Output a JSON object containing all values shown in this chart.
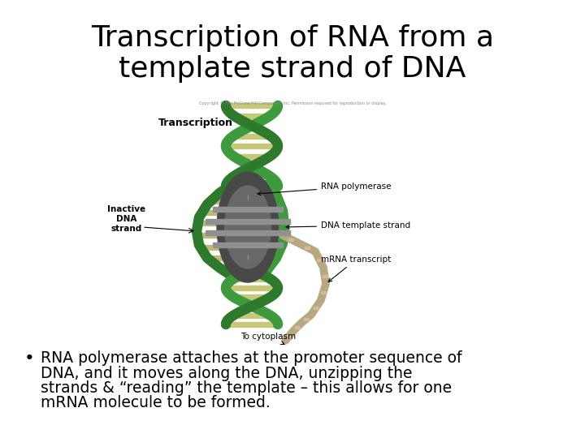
{
  "title_line1": "Transcription of RNA from a",
  "title_line2": "template strand of DNA",
  "title_fontsize": 26,
  "title_color": "#000000",
  "background_color": "#ffffff",
  "bullet_text": "RNA polymerase attaches at the promoter sequence of DNA, and it moves along the DNA, unzipping the strands & “reading” the template – this allows for one mRNA molecule to be formed.",
  "bullet_fontsize": 13.5,
  "figsize": [
    7.2,
    5.4
  ],
  "dpi": 100,
  "c_green_dark": "#2d7a2d",
  "c_green_mid": "#3d9a3d",
  "c_green_light": "#66bb66",
  "c_rung": "#c8c87a",
  "c_gray_dark": "#484848",
  "c_gray_mid": "#686868",
  "c_gray_light": "#909090",
  "c_beige": "#b8a880",
  "c_label": "#000000",
  "label_fontsize": 7.5,
  "transcription_fontsize": 9,
  "copyright_fontsize": 3.5
}
